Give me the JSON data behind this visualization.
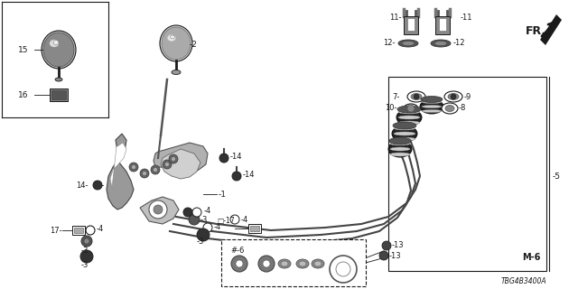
{
  "bg_color": "#ffffff",
  "lc": "#1a1a1a",
  "diagram_code": "TBG4B3400A",
  "figsize": [
    6.4,
    3.2
  ],
  "dpi": 100
}
